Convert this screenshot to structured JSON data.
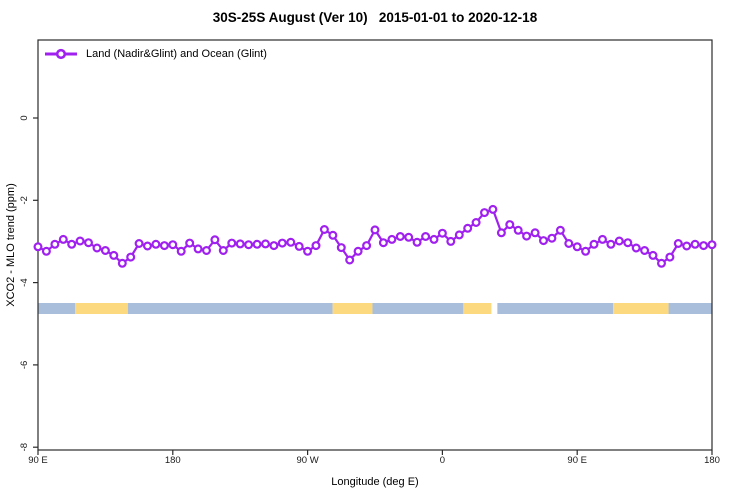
{
  "title": "30S-25S August (Ver 10)   2015-01-01 to 2020-12-18",
  "legend": {
    "label": "Land (Nadir&Glint) and Ocean (Glint)",
    "marker": "open-circle-on-line",
    "color": "#A020F0"
  },
  "colors": {
    "series": "#A020F0",
    "marker_fill": "#FFFFFF",
    "band_ocean": "#A9BEDB",
    "band_land": "#FCD87F",
    "axis": "#2B2B2B",
    "background": "#FFFFFF"
  },
  "axes": {
    "x": {
      "label": "Longitude (deg E)",
      "range_display": [
        90,
        540
      ],
      "ticks": [
        {
          "value": 90,
          "label": "90 E"
        },
        {
          "value": 180,
          "label": "180"
        },
        {
          "value": 270,
          "label": "90 W"
        },
        {
          "value": 360,
          "label": "0"
        },
        {
          "value": 450,
          "label": "90 E"
        },
        {
          "value": 540,
          "label": "180"
        }
      ]
    },
    "y": {
      "label": "XCO2 - MLO trend (ppm)",
      "range": [
        1.9,
        -8.1
      ],
      "ticks": [
        {
          "value": 0,
          "label": "0"
        },
        {
          "value": -2,
          "label": "-2"
        },
        {
          "value": -4,
          "label": "-4"
        },
        {
          "value": -6,
          "label": "-6"
        },
        {
          "value": -8,
          "label": "-8"
        }
      ]
    }
  },
  "chart_data": {
    "type": "line",
    "title": "30S-25S August (Ver 10)   2015-01-01 to 2020-12-18",
    "xlabel": "Longitude (deg E)",
    "ylabel": "XCO2 - MLO trend (ppm)",
    "x_is_display_longitude": "90E wraps eastward: 90,...,180(=540); 90E-180 segment repeated at both ends",
    "x": [
      90,
      95.63,
      101.25,
      106.88,
      112.5,
      118.13,
      123.75,
      129.38,
      135,
      140.63,
      146.25,
      151.88,
      157.5,
      163.13,
      168.75,
      174.38,
      180,
      185.63,
      191.25,
      196.88,
      202.5,
      208.13,
      213.75,
      219.38,
      225,
      230.63,
      236.25,
      241.88,
      247.5,
      253.13,
      258.75,
      264.38,
      270,
      275.63,
      281.25,
      286.88,
      292.5,
      298.13,
      303.75,
      309.38,
      315,
      320.63,
      326.25,
      331.88,
      337.5,
      343.13,
      348.75,
      354.38,
      360,
      365.63,
      371.25,
      376.88,
      382.5,
      388.13,
      393.75,
      399.38,
      405,
      410.63,
      416.25,
      421.88,
      427.5,
      433.13,
      438.75,
      444.38,
      450,
      455.63,
      461.25,
      466.88,
      472.5,
      478.13,
      483.75,
      489.38,
      495,
      500.63,
      506.25,
      511.88,
      517.5,
      523.13,
      528.75,
      534.38,
      540
    ],
    "series": [
      {
        "name": "Land (Nadir&Glint) and Ocean (Glint)",
        "values": [
          -3.13,
          -3.24,
          -3.07,
          -2.95,
          -3.07,
          -2.99,
          -3.03,
          -3.16,
          -3.22,
          -3.34,
          -3.53,
          -3.38,
          -3.05,
          -3.11,
          -3.07,
          -3.1,
          -3.08,
          -3.24,
          -3.04,
          -3.18,
          -3.22,
          -2.96,
          -3.22,
          -3.04,
          -3.06,
          -3.08,
          -3.07,
          -3.06,
          -3.1,
          -3.04,
          -3.02,
          -3.12,
          -3.24,
          -3.1,
          -2.71,
          -2.85,
          -3.15,
          -3.45,
          -3.24,
          -3.1,
          -2.72,
          -3.03,
          -2.95,
          -2.88,
          -2.9,
          -3.02,
          -2.88,
          -2.95,
          -2.8,
          -3.0,
          -2.84,
          -2.68,
          -2.54,
          -2.3,
          -2.22,
          -2.79,
          -2.59,
          -2.73,
          -2.87,
          -2.79,
          -2.98,
          -2.92,
          -2.73,
          -3.05,
          -3.13,
          -3.24,
          -3.07,
          -2.95,
          -3.07,
          -2.99,
          -3.03,
          -3.16,
          -3.22,
          -3.34,
          -3.53,
          -3.38,
          -3.05,
          -3.11,
          -3.07,
          -3.1,
          -3.08
        ]
      }
    ],
    "surface_band": {
      "y_center_ppm": -4.6,
      "segments": [
        {
          "from": 90,
          "to": 114.7,
          "type": "ocean"
        },
        {
          "from": 114.7,
          "to": 150,
          "type": "land"
        },
        {
          "from": 150,
          "to": 286.7,
          "type": "ocean"
        },
        {
          "from": 286.7,
          "to": 313.3,
          "type": "land"
        },
        {
          "from": 313.3,
          "to": 374,
          "type": "ocean"
        },
        {
          "from": 374,
          "to": 392.7,
          "type": "land"
        },
        {
          "from": 396.7,
          "to": 474,
          "type": "ocean"
        },
        {
          "from": 474,
          "to": 511,
          "type": "land"
        },
        {
          "from": 511,
          "to": 540,
          "type": "ocean"
        }
      ]
    },
    "legend_position": "top-left",
    "grid": false
  }
}
